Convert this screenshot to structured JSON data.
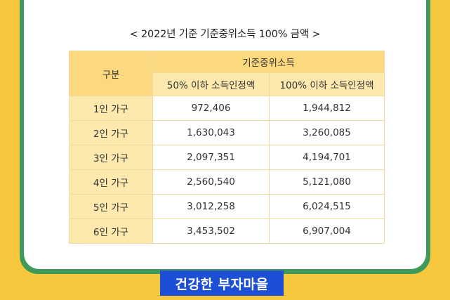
{
  "title": "< 2022년 기준 기준중위소득 100% 금액 >",
  "table": {
    "corner_label": "구분",
    "group_header": "기준중위소득",
    "col_50": "50% 이하 소득인정액",
    "col_100": "100% 이하 소득인정액",
    "rows": [
      {
        "label": "1인 가구",
        "v50": "972,406",
        "v100": "1,944,812"
      },
      {
        "label": "2인 가구",
        "v50": "1,630,043",
        "v100": "3,260,085"
      },
      {
        "label": "3인 가구",
        "v50": "2,097,351",
        "v100": "4,194,701"
      },
      {
        "label": "4인 가구",
        "v50": "2,560,540",
        "v100": "5,121,080"
      },
      {
        "label": "5인 가구",
        "v50": "3,012,258",
        "v100": "6,024,515"
      },
      {
        "label": "6인 가구",
        "v50": "3,453,502",
        "v100": "6,907,004"
      }
    ]
  },
  "banner": "건강한 부자마을",
  "colors": {
    "background": "#f7c73d",
    "frame": "#3f9a5a",
    "header": "#fcd97f",
    "banner": "#1d4fd6"
  }
}
